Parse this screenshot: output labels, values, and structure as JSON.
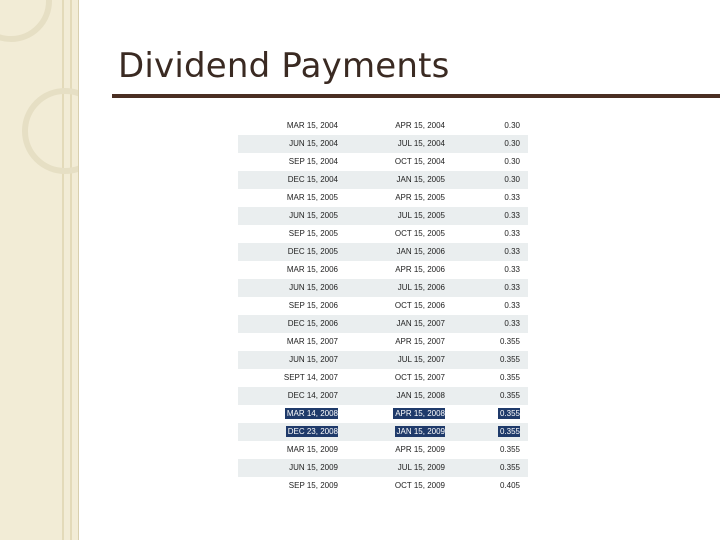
{
  "slide": {
    "title": "Dividend Payments"
  },
  "colors": {
    "title_text": "#3a2a22",
    "rule": "#4a2e22",
    "side_band": "#f2ecd6",
    "row_shade": "#eaeeef",
    "highlight": "#1f3a6a"
  },
  "table": {
    "rows": [
      {
        "payment_date": "MAR 15, 2004",
        "record_date": "APR 15, 2004",
        "amount": "0.30"
      },
      {
        "payment_date": "JUN 15, 2004",
        "record_date": "JUL 15, 2004",
        "amount": "0.30"
      },
      {
        "payment_date": "SEP 15, 2004",
        "record_date": "OCT 15, 2004",
        "amount": "0.30"
      },
      {
        "payment_date": "DEC 15, 2004",
        "record_date": "JAN 15, 2005",
        "amount": "0.30"
      },
      {
        "payment_date": "MAR 15, 2005",
        "record_date": "APR 15, 2005",
        "amount": "0.33"
      },
      {
        "payment_date": "JUN 15, 2005",
        "record_date": "JUL 15, 2005",
        "amount": "0.33"
      },
      {
        "payment_date": "SEP 15, 2005",
        "record_date": "OCT 15, 2005",
        "amount": "0.33"
      },
      {
        "payment_date": "DEC 15, 2005",
        "record_date": "JAN 15, 2006",
        "amount": "0.33"
      },
      {
        "payment_date": "MAR 15, 2006",
        "record_date": "APR 15, 2006",
        "amount": "0.33"
      },
      {
        "payment_date": "JUN 15, 2006",
        "record_date": "JUL 15, 2006",
        "amount": "0.33"
      },
      {
        "payment_date": "SEP 15, 2006",
        "record_date": "OCT 15, 2006",
        "amount": "0.33"
      },
      {
        "payment_date": "DEC 15, 2006",
        "record_date": "JAN 15, 2007",
        "amount": "0.33"
      },
      {
        "payment_date": "MAR 15, 2007",
        "record_date": "APR 15, 2007",
        "amount": "0.355"
      },
      {
        "payment_date": "JUN 15, 2007",
        "record_date": "JUL 15, 2007",
        "amount": "0.355"
      },
      {
        "payment_date": "SEPT 14, 2007",
        "record_date": "OCT 15, 2007",
        "amount": "0.355"
      },
      {
        "payment_date": "DEC 14, 2007",
        "record_date": "JAN 15, 2008",
        "amount": "0.355"
      },
      {
        "payment_date": "MAR 14, 2008",
        "record_date": "APR 15, 2008",
        "amount": "0.355",
        "highlighted": true
      },
      {
        "payment_date": "DEC 23, 2008",
        "record_date": "JAN 15, 2009",
        "amount": "0.355",
        "highlighted": true
      },
      {
        "payment_date": "MAR 15, 2009",
        "record_date": "APR 15, 2009",
        "amount": "0.355"
      },
      {
        "payment_date": "JUN 15, 2009",
        "record_date": "JUL 15, 2009",
        "amount": "0.355"
      },
      {
        "payment_date": "SEP 15, 2009",
        "record_date": "OCT 15, 2009",
        "amount": "0.405"
      }
    ]
  }
}
